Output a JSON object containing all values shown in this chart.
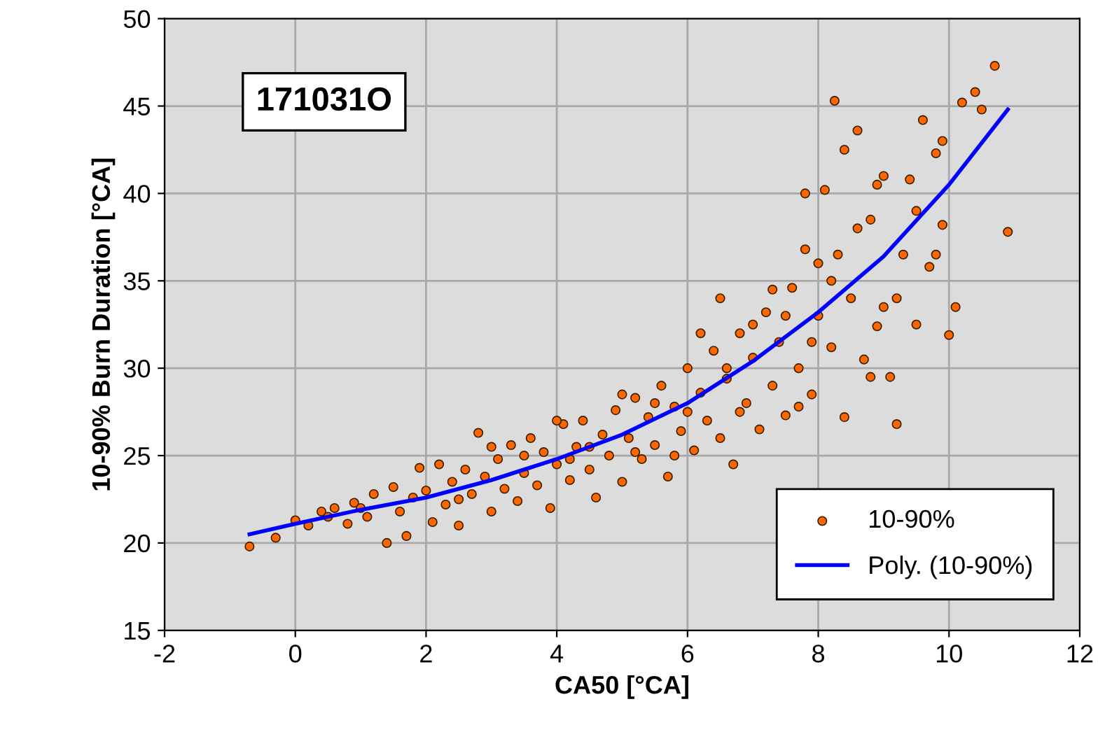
{
  "chart_data": {
    "type": "scatter",
    "xlabel": "CA50 [°CA]",
    "ylabel": "10-90% Burn Duration [°CA]",
    "annotations": [
      "171031O"
    ],
    "xlim": [
      -2,
      12
    ],
    "ylim": [
      15,
      50
    ],
    "xticks": [
      -2,
      0,
      2,
      4,
      6,
      8,
      10,
      12
    ],
    "yticks": [
      15,
      20,
      25,
      30,
      35,
      40,
      45,
      50
    ],
    "grid": true,
    "legend": "bottom right",
    "marker": "circle",
    "series": [
      {
        "name": "10-90%",
        "color": "#ff6600",
        "x": [
          -0.7,
          -0.3,
          0.0,
          0.2,
          0.4,
          0.6,
          0.8,
          0.9,
          1.1,
          1.2,
          1.4,
          1.5,
          1.6,
          1.7,
          1.8,
          1.9,
          2.0,
          2.1,
          2.2,
          2.3,
          2.4,
          2.5,
          2.6,
          2.7,
          2.8,
          2.9,
          3.0,
          3.1,
          3.2,
          3.3,
          3.4,
          3.5,
          3.6,
          3.7,
          3.8,
          3.9,
          4.0,
          4.1,
          4.2,
          4.3,
          4.4,
          4.5,
          4.6,
          4.7,
          4.8,
          4.9,
          5.0,
          5.1,
          5.2,
          5.3,
          5.4,
          5.5,
          5.6,
          5.7,
          5.8,
          5.9,
          6.0,
          6.1,
          6.2,
          6.3,
          6.4,
          6.5,
          6.6,
          6.7,
          6.8,
          6.9,
          7.0,
          7.1,
          7.2,
          7.3,
          7.4,
          7.5,
          7.6,
          7.7,
          7.8,
          7.9,
          8.0,
          8.1,
          8.2,
          8.3,
          8.4,
          8.5,
          8.6,
          8.7,
          8.8,
          8.9,
          9.0,
          9.1,
          9.2,
          9.3,
          9.4,
          9.5,
          9.6,
          9.7,
          9.8,
          9.9,
          10.0,
          10.1,
          10.2,
          10.4,
          10.7,
          10.9,
          8.25,
          7.8,
          6.5,
          7.0,
          6.0,
          5.5,
          4.5,
          3.5,
          2.5,
          8.4,
          9.2,
          8.0,
          7.5,
          9.8,
          9.5,
          8.8,
          7.7,
          6.2,
          5.0,
          5.8,
          4.0,
          3.0,
          6.8,
          7.3,
          8.6,
          9.0,
          9.9,
          10.5,
          8.9,
          1.0,
          0.5,
          4.2,
          5.2,
          6.6,
          7.9,
          8.2
        ],
        "values": [
          19.8,
          20.3,
          21.3,
          21.0,
          21.8,
          22.0,
          21.1,
          22.3,
          21.5,
          22.8,
          20.0,
          23.2,
          21.8,
          20.4,
          22.6,
          24.3,
          23.0,
          21.2,
          24.5,
          22.2,
          23.5,
          21.0,
          24.2,
          22.8,
          26.3,
          23.8,
          21.8,
          24.8,
          23.1,
          25.6,
          22.4,
          24.0,
          26.0,
          23.3,
          25.2,
          22.0,
          24.5,
          26.8,
          23.6,
          25.5,
          27.0,
          24.2,
          22.6,
          26.2,
          25.0,
          27.6,
          23.5,
          26.0,
          28.3,
          24.8,
          27.2,
          25.6,
          29.0,
          23.8,
          27.8,
          26.4,
          30.0,
          25.3,
          28.6,
          27.0,
          31.0,
          26.0,
          29.4,
          24.5,
          32.0,
          28.0,
          30.6,
          26.5,
          33.2,
          29.0,
          31.5,
          27.3,
          34.6,
          30.0,
          36.8,
          28.5,
          33.0,
          40.2,
          31.2,
          36.5,
          27.2,
          34.0,
          43.6,
          30.5,
          38.5,
          32.4,
          41.0,
          29.5,
          26.8,
          36.5,
          40.8,
          32.5,
          44.2,
          35.8,
          42.3,
          38.2,
          31.9,
          33.5,
          45.2,
          45.8,
          47.3,
          37.8,
          45.3,
          40.0,
          34.0,
          32.5,
          27.5,
          28.0,
          25.5,
          25.0,
          22.5,
          42.5,
          34.0,
          36.0,
          33.0,
          36.5,
          39.0,
          29.5,
          27.8,
          32.0,
          28.5,
          25.0,
          27.0,
          25.5,
          27.5,
          34.5,
          38.0,
          33.5,
          43.0,
          44.8,
          40.5,
          22.0,
          21.5,
          24.8,
          25.2,
          30.0,
          31.5,
          35.0
        ]
      },
      {
        "name": "Poly. (10-90%)",
        "type": "line",
        "color": "#0000ff",
        "marker": "none",
        "line_style": "solid",
        "x": [
          -0.7,
          0,
          1,
          2,
          3,
          4,
          5,
          6,
          7,
          8,
          9,
          10,
          10.9
        ],
        "values": [
          20.5,
          21.1,
          21.9,
          22.6,
          23.6,
          24.8,
          26.2,
          28.0,
          30.4,
          33.2,
          36.4,
          40.5,
          44.8
        ]
      }
    ]
  }
}
